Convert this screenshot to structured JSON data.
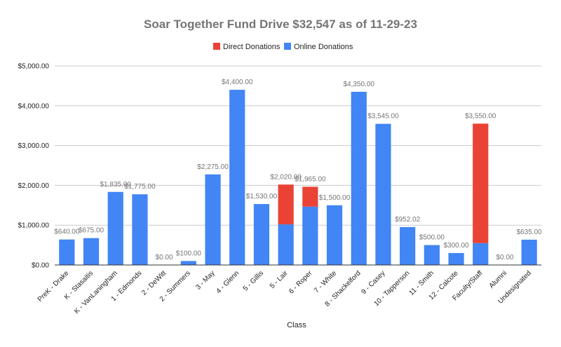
{
  "chart_data": {
    "type": "bar",
    "stacked": true,
    "title": "Soar Together Fund Drive $32,547 as of 11-29-23",
    "xlabel": "Class",
    "ylabel": "",
    "ylim": [
      0,
      5000
    ],
    "yticks": [
      "$0.00",
      "$1,000.00",
      "$2,000.00",
      "$3,000.00",
      "$4,000.00",
      "$5,000.00"
    ],
    "legend_position": "top",
    "categories": [
      "PreK - Drake",
      "K - Stasaitis",
      "K - VanLaningham",
      "1 - Edmonds",
      "2 - DeWitt",
      "2 - Summers",
      "3 - May",
      "4 - Glenn",
      "5 - Gillis",
      "5 - Lair",
      "6 - Roper",
      "7 - White",
      "8 - Shackelford",
      "9 - Casey",
      "10 - Tapperson",
      "11 - Smith",
      "12 - Calcote",
      "Faculty/Staff",
      "Alumni",
      "Undesignated"
    ],
    "series": [
      {
        "name": "Direct Donations",
        "color": "#ea4335",
        "values": [
          0,
          0,
          0,
          0,
          0,
          0,
          0,
          0,
          0,
          1000,
          500,
          0,
          0,
          0,
          0,
          0,
          0,
          3000,
          0,
          0
        ]
      },
      {
        "name": "Online Donations",
        "color": "#4285f4",
        "values": [
          640,
          675,
          1835,
          1775,
          0,
          100,
          2275,
          4400,
          1530,
          1020,
          1465,
          1500,
          4350,
          3545,
          952.02,
          500,
          300,
          550,
          0,
          635
        ]
      }
    ],
    "data_labels": [
      "$640.00",
      "$675.00",
      "$1,835.00",
      "$1,775.00",
      "$0.00",
      "$100.00",
      "$2,275.00",
      "$4,400.00",
      "$1,530.00",
      "$2,020.00",
      "$1,965.00",
      "$1,500.00",
      "$4,350.00",
      "$3,545.00",
      "$952.02",
      "$500.00",
      "$300.00",
      "$3,550.00",
      "$0.00",
      "$635.00"
    ]
  }
}
